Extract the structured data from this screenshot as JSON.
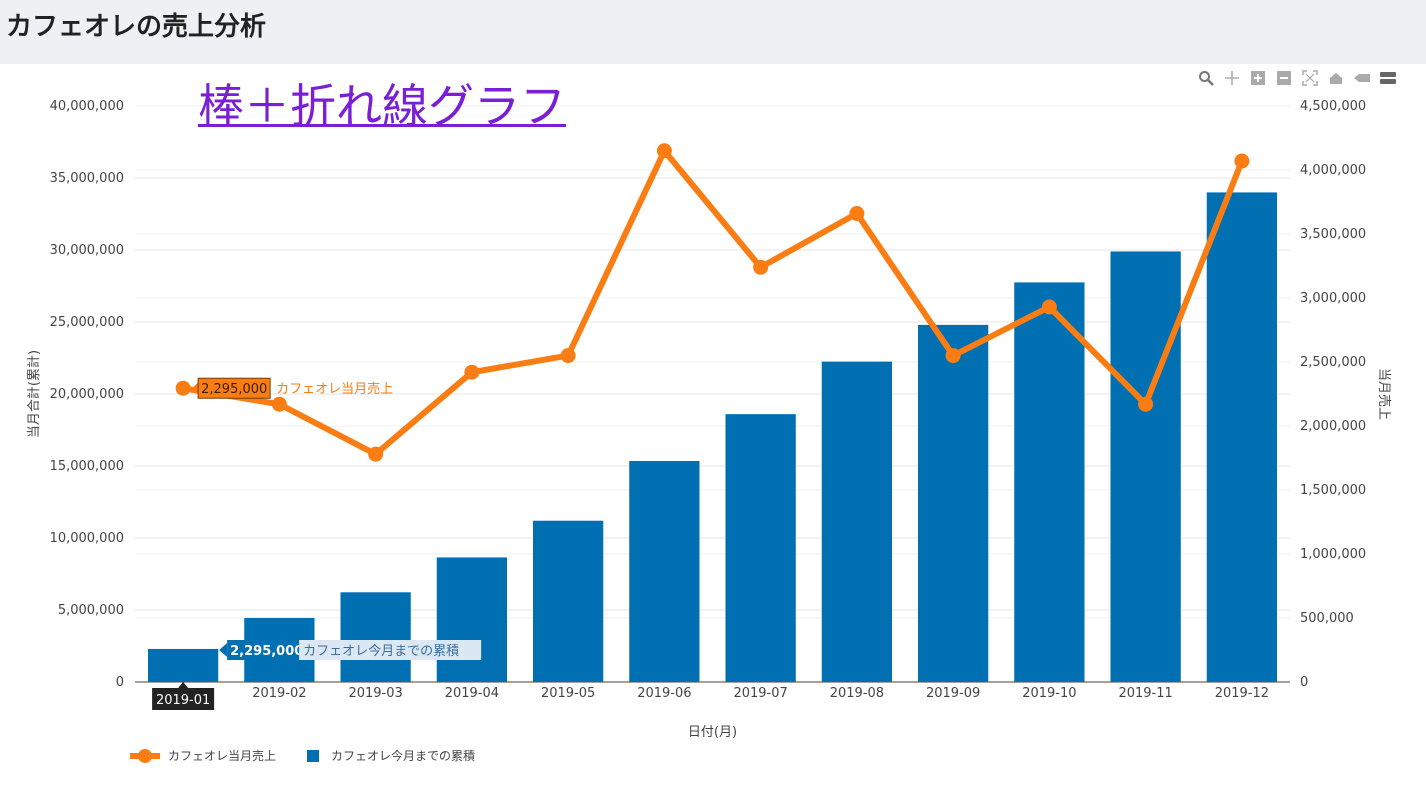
{
  "page": {
    "title": "カフェオレの売上分析",
    "annotation": "棒＋折れ線グラフ"
  },
  "toolbar": {
    "icons": [
      "zoom-icon",
      "pan-icon",
      "zoom-in-icon",
      "zoom-out-icon",
      "autoscale-icon",
      "home-icon",
      "spike-lines-icon",
      "compare-data-icon"
    ]
  },
  "colors": {
    "bar": "#0070b3",
    "line": "#f97d12",
    "annotation": "#7a1fd6"
  },
  "chart_data": {
    "type": "bar",
    "categories": [
      "2019-01",
      "2019-02",
      "2019-03",
      "2019-04",
      "2019-05",
      "2019-06",
      "2019-07",
      "2019-08",
      "2019-09",
      "2019-10",
      "2019-11",
      "2019-12"
    ],
    "series": [
      {
        "name": "カフェオレ今月までの累積",
        "type": "bar",
        "axis": "left",
        "values": [
          2295000,
          4450000,
          6230000,
          8650000,
          11200000,
          15350000,
          18600000,
          22250000,
          24800000,
          27750000,
          29900000,
          34000000
        ]
      },
      {
        "name": "カフェオレ当月売上",
        "type": "line",
        "axis": "right",
        "values": [
          2295000,
          2170000,
          1780000,
          2420000,
          2550000,
          4150000,
          3240000,
          3660000,
          2550000,
          2930000,
          2170000,
          4070000
        ]
      }
    ],
    "xlabel": "日付(月)",
    "ylabel_left": "当月合計(累計)",
    "ylabel_right": "当月売上",
    "ylim_left": [
      0,
      40000000
    ],
    "ylim_right": [
      0,
      4500000
    ],
    "yticks_left": [
      "0",
      "5,000,000",
      "10,000,000",
      "15,000,000",
      "20,000,000",
      "25,000,000",
      "30,000,000",
      "35,000,000",
      "40,000,000"
    ],
    "yticks_right": [
      "0",
      "500,000",
      "1,000,000",
      "1,500,000",
      "2,000,000",
      "2,500,000",
      "3,000,000",
      "3,500,000",
      "4,000,000",
      "4,500,000"
    ],
    "grid": true,
    "legend_position": "bottom-left",
    "hover": {
      "category": "2019-01",
      "line_label": "2,295,000",
      "line_series": "カフェオレ当月売上",
      "bar_label": "2,295,000",
      "bar_series": "カフェオレ今月までの累積"
    }
  }
}
